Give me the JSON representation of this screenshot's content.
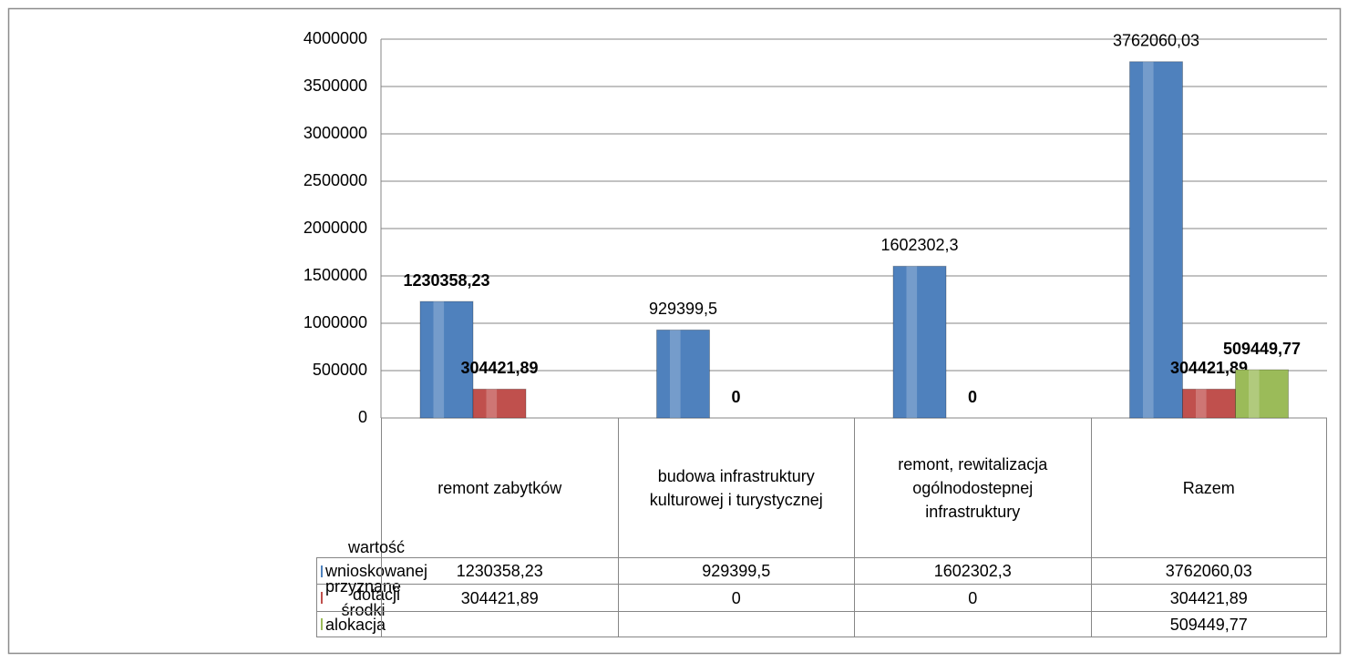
{
  "chart_data": {
    "type": "bar",
    "categories": [
      "remont zabytków",
      "budowa infrastruktury kulturowej i turystycznej",
      "remont, rewitalizacja ogólnodostepnej infrastruktury",
      "Razem"
    ],
    "series": [
      {
        "name": "wartość wnioskowanej dotacji",
        "color": "#4f81bd",
        "values": [
          1230358.23,
          929399.5,
          1602302.3,
          3762060.03
        ],
        "value_labels": [
          "1230358,23",
          "929399,5",
          "1602302,3",
          "3762060,03"
        ]
      },
      {
        "name": "przyznane środki",
        "color": "#c0504d",
        "values": [
          304421.89,
          0,
          0,
          304421.89
        ],
        "value_labels": [
          "304421,89",
          "0",
          "0",
          "304421,89"
        ]
      },
      {
        "name": "alokacja",
        "color": "#9bbb59",
        "values": [
          null,
          null,
          null,
          509449.77
        ],
        "value_labels": [
          null,
          null,
          null,
          "509449,77"
        ]
      }
    ],
    "ylim": [
      0,
      4000000
    ],
    "yticks": [
      0,
      500000,
      1000000,
      1500000,
      2000000,
      2500000,
      3000000,
      3500000,
      4000000
    ],
    "grid": true
  }
}
